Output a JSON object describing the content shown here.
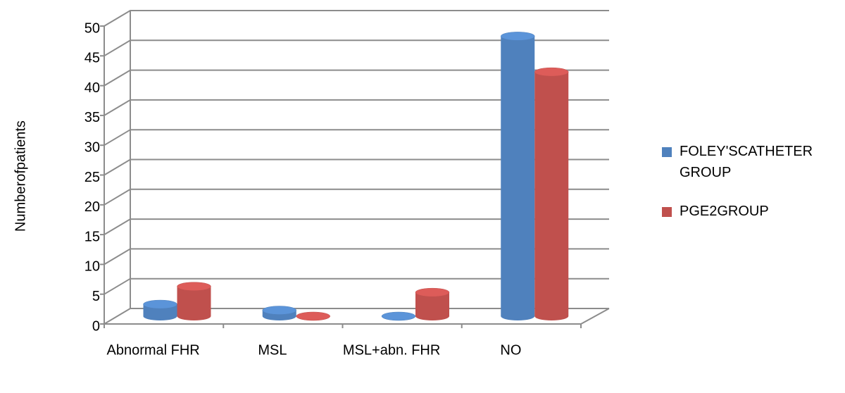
{
  "chart_data": {
    "type": "bar3d",
    "y_label": "Numberofpatients",
    "categories": [
      "Abnormal FHR",
      "MSL",
      "MSL+abn. FHR",
      "NO"
    ],
    "series": [
      {
        "name": "FOLEY'SCATHETER GROUP",
        "color": "#4f81bd",
        "values": [
          2,
          1,
          0,
          47
        ]
      },
      {
        "name": "PGE2GROUP",
        "color": "#c0504d",
        "values": [
          5,
          0,
          4,
          41
        ]
      }
    ],
    "ylim": [
      0,
      50
    ],
    "yticks": [
      0,
      5,
      10,
      15,
      20,
      25,
      30,
      35,
      40,
      45,
      50
    ],
    "grid": true,
    "legend": "right"
  }
}
